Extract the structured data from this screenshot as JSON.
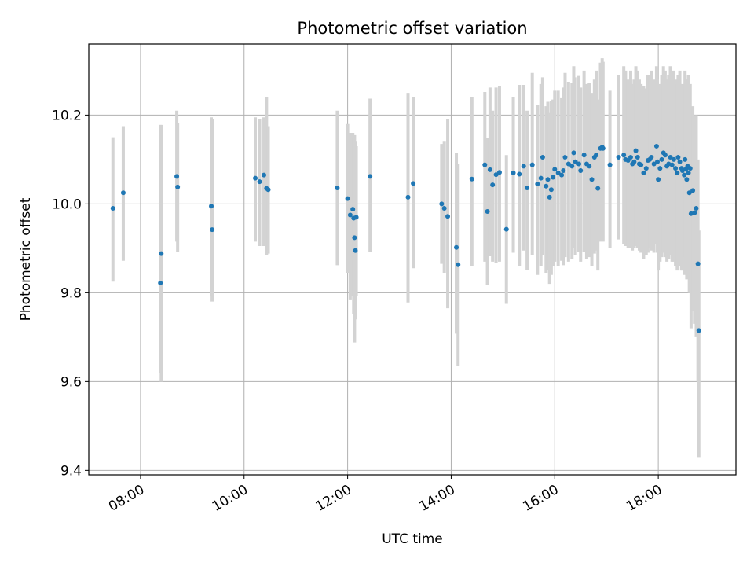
{
  "chart_data": {
    "type": "scatter",
    "title": "Photometric offset variation",
    "xlabel": "UTC time",
    "ylabel": "Photometric offset",
    "x_ticks": [
      "08:00",
      "10:00",
      "12:00",
      "14:00",
      "16:00",
      "18:00"
    ],
    "y_ticks": [
      "9.4",
      "9.6",
      "9.8",
      "10.0",
      "10.2"
    ],
    "xlim": [
      "07:00",
      "19:30"
    ],
    "ylim": [
      9.39,
      10.36
    ],
    "grid": true,
    "colors": {
      "points": "#1f77b4",
      "errorbars": "#d3d3d3",
      "grid": "#b0b0b0"
    },
    "series": [
      {
        "x": [
          "07:28",
          "07:40",
          "08:23",
          "08:24",
          "08:42",
          "08:43",
          "09:22",
          "09:23",
          "10:13",
          "10:18",
          "10:23",
          "10:26",
          "10:28",
          "11:48",
          "12:00",
          "12:03",
          "12:06",
          "12:07",
          "12:08",
          "12:09",
          "12:10",
          "12:26",
          "13:10",
          "13:16",
          "13:49",
          "13:52",
          "13:56",
          "14:06",
          "14:08",
          "14:24",
          "14:39",
          "14:42",
          "14:45",
          "14:48",
          "14:52",
          "14:56",
          "15:04",
          "15:12",
          "15:19",
          "15:24",
          "15:28",
          "15:34",
          "15:40",
          "15:44",
          "15:46",
          "15:50",
          "15:52",
          "15:54",
          "15:56",
          "15:58",
          "16:00",
          "16:04",
          "16:08",
          "16:10",
          "16:12",
          "16:16",
          "16:20",
          "16:22",
          "16:24",
          "16:28",
          "16:30",
          "16:34",
          "16:37",
          "16:40",
          "16:43",
          "16:46",
          "16:48",
          "16:50",
          "16:53",
          "16:55",
          "16:56",
          "17:04",
          "17:14",
          "17:20",
          "17:22",
          "17:25",
          "17:28",
          "17:30",
          "17:32",
          "17:34",
          "17:36",
          "17:38",
          "17:40",
          "17:43",
          "17:46",
          "17:48",
          "17:50",
          "17:52",
          "17:55",
          "17:58",
          "17:59",
          "18:00",
          "18:02",
          "18:04",
          "18:06",
          "18:08",
          "18:10",
          "18:12",
          "18:14",
          "18:16",
          "18:18",
          "18:20",
          "18:22",
          "18:23",
          "18:25",
          "18:27",
          "18:28",
          "18:30",
          "18:31",
          "18:32",
          "18:33",
          "18:34",
          "18:35",
          "18:36",
          "18:37",
          "18:38",
          "18:40",
          "18:42",
          "18:44",
          "18:46",
          "18:47"
        ],
        "y": [
          9.99,
          10.025,
          9.822,
          9.888,
          10.062,
          10.038,
          9.995,
          9.942,
          10.058,
          10.05,
          10.065,
          10.035,
          10.032,
          10.036,
          10.012,
          9.975,
          9.988,
          9.968,
          9.924,
          9.895,
          9.97,
          10.062,
          10.015,
          10.046,
          10.0,
          9.99,
          9.972,
          9.902,
          9.863,
          10.056,
          10.088,
          9.983,
          10.077,
          10.043,
          10.066,
          10.071,
          9.943,
          10.07,
          10.067,
          10.085,
          10.036,
          10.088,
          10.045,
          10.058,
          10.105,
          10.04,
          10.055,
          10.015,
          10.032,
          10.06,
          10.078,
          10.07,
          10.065,
          10.075,
          10.105,
          10.09,
          10.085,
          10.115,
          10.095,
          10.09,
          10.075,
          10.11,
          10.09,
          10.085,
          10.055,
          10.105,
          10.11,
          10.035,
          10.125,
          10.128,
          10.125,
          10.088,
          10.105,
          10.11,
          10.1,
          10.098,
          10.105,
          10.09,
          10.095,
          10.12,
          10.105,
          10.09,
          10.088,
          10.07,
          10.08,
          10.098,
          10.1,
          10.105,
          10.09,
          10.13,
          10.095,
          10.055,
          10.08,
          10.1,
          10.115,
          10.11,
          10.085,
          10.09,
          10.105,
          10.088,
          10.1,
          10.08,
          10.07,
          10.105,
          10.095,
          10.08,
          10.075,
          10.065,
          10.1,
          10.078,
          10.055,
          10.085,
          10.07,
          10.025,
          10.08,
          9.978,
          10.03,
          9.98,
          9.99,
          9.865,
          9.715
        ],
        "yerr_low": [
          9.825,
          9.872,
          9.62,
          9.6,
          9.915,
          9.892,
          9.792,
          9.78,
          9.915,
          9.905,
          9.905,
          9.885,
          9.888,
          9.862,
          9.845,
          9.785,
          9.792,
          9.752,
          9.688,
          9.74,
          9.792,
          9.892,
          9.778,
          9.855,
          9.865,
          9.845,
          9.765,
          9.708,
          9.635,
          9.86,
          9.87,
          9.818,
          9.882,
          9.87,
          9.868,
          9.87,
          9.775,
          9.89,
          9.86,
          9.895,
          9.852,
          9.885,
          9.84,
          9.86,
          9.885,
          9.845,
          9.852,
          9.82,
          9.84,
          9.86,
          9.87,
          9.86,
          9.872,
          9.862,
          9.88,
          9.87,
          9.875,
          9.9,
          9.885,
          9.892,
          9.87,
          9.892,
          9.875,
          9.88,
          9.86,
          9.888,
          9.895,
          9.85,
          9.915,
          9.92,
          9.915,
          9.9,
          9.92,
          9.91,
          9.905,
          9.9,
          9.9,
          9.895,
          9.9,
          9.905,
          9.9,
          9.895,
          9.89,
          9.875,
          9.885,
          9.89,
          9.9,
          9.895,
          9.89,
          9.91,
          9.89,
          9.85,
          9.87,
          9.88,
          9.89,
          9.88,
          9.87,
          9.875,
          9.885,
          9.87,
          9.87,
          9.86,
          9.85,
          9.87,
          9.86,
          9.85,
          9.85,
          9.84,
          9.88,
          9.85,
          9.83,
          9.85,
          9.84,
          9.8,
          9.8,
          9.72,
          9.76,
          9.73,
          9.7,
          9.6,
          9.43
        ],
        "yerr_high": [
          10.15,
          10.175,
          10.178,
          10.178,
          10.21,
          10.182,
          10.195,
          10.19,
          10.195,
          10.19,
          10.195,
          10.24,
          10.175,
          10.21,
          10.18,
          10.16,
          10.16,
          10.15,
          10.155,
          10.14,
          10.13,
          10.237,
          10.25,
          10.24,
          10.135,
          10.14,
          10.19,
          10.115,
          10.09,
          10.24,
          10.252,
          10.148,
          10.262,
          10.21,
          10.262,
          10.265,
          10.11,
          10.24,
          10.268,
          10.268,
          10.21,
          10.295,
          10.222,
          10.27,
          10.285,
          10.22,
          10.23,
          10.205,
          10.232,
          10.235,
          10.255,
          10.255,
          10.238,
          10.262,
          10.295,
          10.275,
          10.272,
          10.31,
          10.285,
          10.288,
          10.262,
          10.3,
          10.27,
          10.272,
          10.25,
          10.28,
          10.3,
          10.235,
          10.318,
          10.328,
          10.32,
          10.255,
          10.29,
          10.31,
          10.3,
          10.28,
          10.3,
          10.27,
          10.28,
          10.31,
          10.3,
          10.28,
          10.27,
          10.265,
          10.26,
          10.29,
          10.29,
          10.3,
          10.28,
          10.31,
          10.28,
          10.25,
          10.27,
          10.29,
          10.31,
          10.3,
          10.28,
          10.29,
          10.31,
          10.29,
          10.3,
          10.28,
          10.27,
          10.29,
          10.3,
          10.26,
          10.27,
          10.27,
          10.3,
          10.28,
          10.25,
          10.28,
          10.29,
          10.23,
          10.27,
          10.2,
          10.22,
          10.2,
          10.2,
          10.1,
          9.94
        ]
      }
    ]
  }
}
